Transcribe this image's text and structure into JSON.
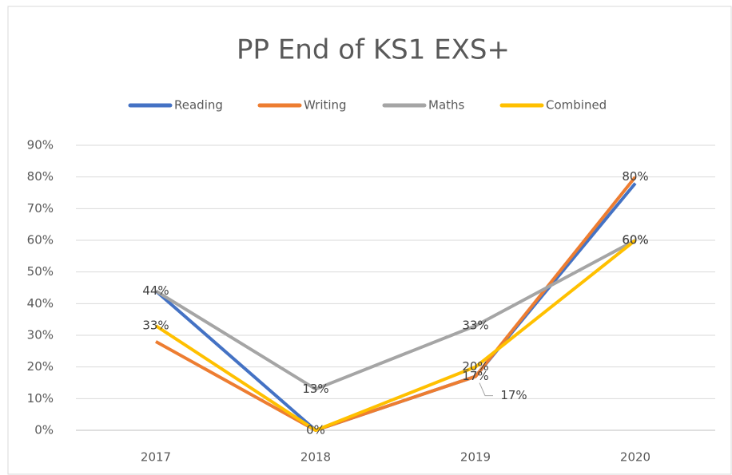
{
  "chart_data": {
    "type": "line",
    "title": "PP End of KS1 EXS+",
    "categories": [
      "2017",
      "2018",
      "2019",
      "2020"
    ],
    "series": [
      {
        "name": "Reading",
        "color": "#4472c4",
        "values": [
          44,
          0,
          17,
          78
        ],
        "value_labels": [
          null,
          null,
          "17%",
          null
        ]
      },
      {
        "name": "Writing",
        "color": "#ed7d31",
        "values": [
          28,
          0,
          17,
          80
        ],
        "value_labels": [
          null,
          "0%",
          "17%",
          "80%"
        ]
      },
      {
        "name": "Maths",
        "color": "#a5a5a5",
        "values": [
          44,
          13,
          33,
          60
        ],
        "value_labels": [
          "44%",
          "13%",
          "33%",
          "60%"
        ]
      },
      {
        "name": "Combined",
        "color": "#ffc000",
        "values": [
          33,
          0,
          20,
          60
        ],
        "value_labels": [
          "33%",
          null,
          "20%",
          "60%"
        ]
      }
    ],
    "ylim": [
      0,
      90
    ],
    "yticks": [
      {
        "value": 0,
        "label": "0%"
      },
      {
        "value": 10,
        "label": "10%"
      },
      {
        "value": 20,
        "label": "20%"
      },
      {
        "value": 30,
        "label": "30%"
      },
      {
        "value": 40,
        "label": "40%"
      },
      {
        "value": 50,
        "label": "50%"
      },
      {
        "value": 60,
        "label": "60%"
      },
      {
        "value": 70,
        "label": "70%"
      },
      {
        "value": 80,
        "label": "80%"
      },
      {
        "value": 90,
        "label": "90%"
      }
    ],
    "grid": true,
    "legend": "top"
  }
}
